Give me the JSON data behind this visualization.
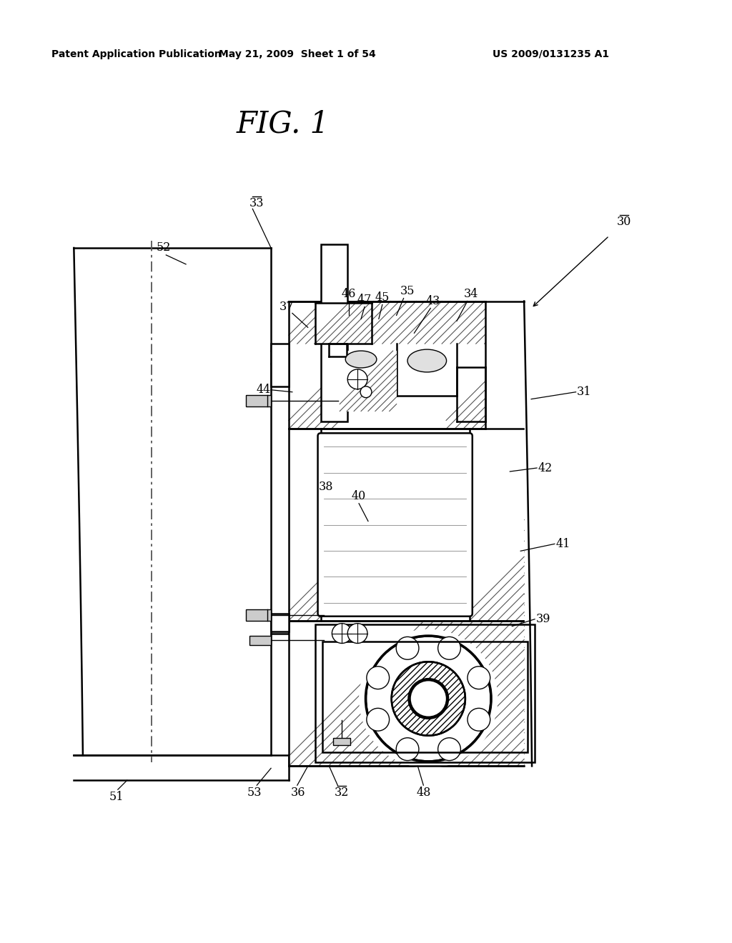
{
  "title": "FIG. 1",
  "header_left": "Patent Application Publication",
  "header_center": "May 21, 2009  Sheet 1 of 54",
  "header_right": "US 2009/0131235 A1",
  "bg_color": "#ffffff",
  "line_color": "#000000"
}
